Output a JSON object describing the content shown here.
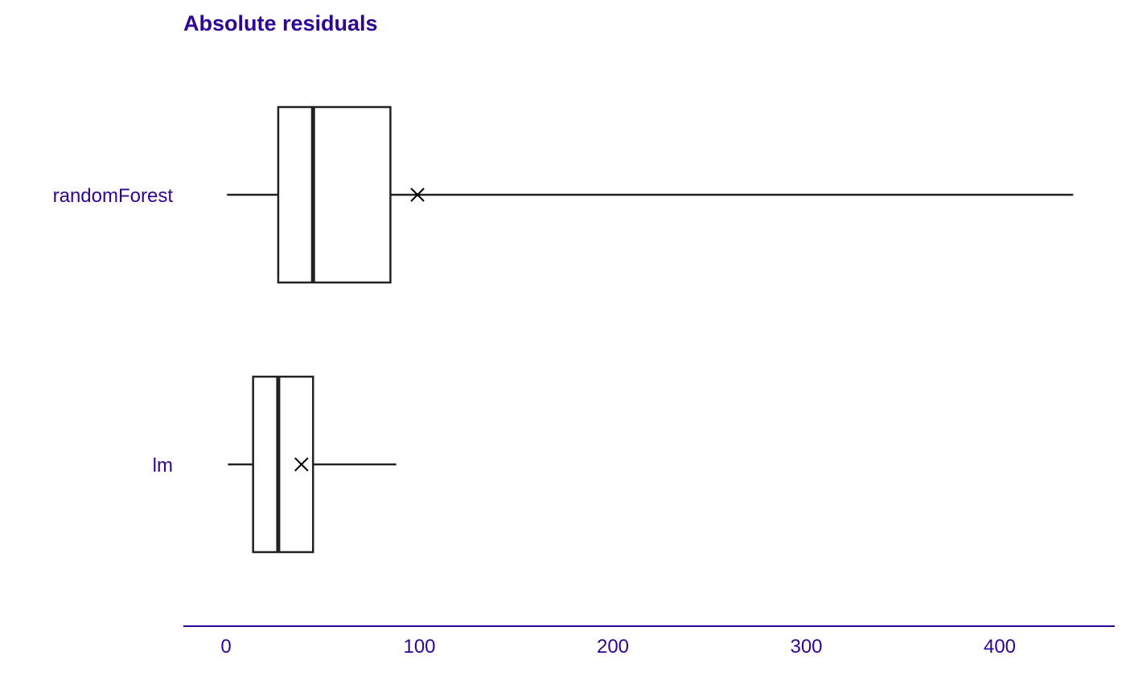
{
  "chart_data": {
    "type": "boxplot",
    "title": "Absolute residuals",
    "xlabel": "",
    "ylabel": "",
    "xlim": [
      -22,
      460
    ],
    "x_ticks": [
      0,
      100,
      200,
      300,
      400
    ],
    "grid": false,
    "legend": "none",
    "series": [
      {
        "name": "randomForest",
        "min": 0.5,
        "q1": 27,
        "median": 45,
        "q3": 85,
        "max": 438,
        "mean": 99
      },
      {
        "name": "lm",
        "min": 1,
        "q1": 14,
        "median": 27,
        "q3": 45,
        "max": 88,
        "mean": 39
      }
    ]
  },
  "colors": {
    "accent": "#2e0594",
    "box": "#222222"
  }
}
